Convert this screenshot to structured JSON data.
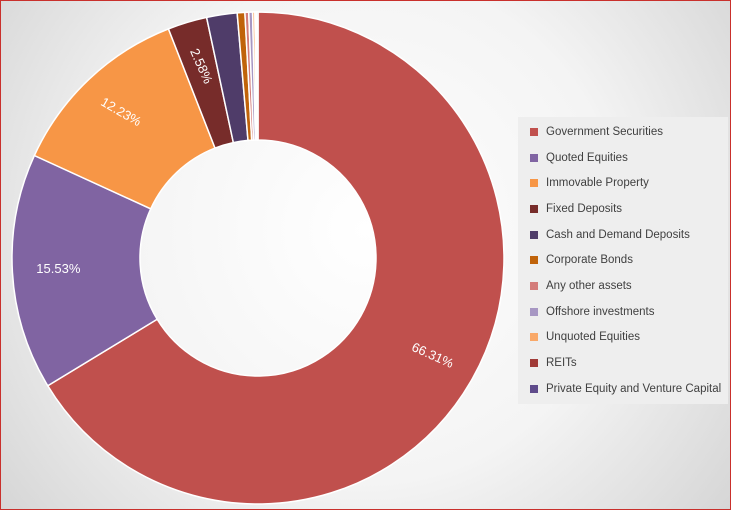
{
  "chart_data": {
    "type": "pie",
    "donut": true,
    "title": "",
    "legend_position": "right",
    "series": [
      {
        "name": "Government Securities",
        "value": 66.31,
        "label": "66.31%",
        "color": "#c0504d"
      },
      {
        "name": "Quoted Equities",
        "value": 15.53,
        "label": "15.53%",
        "color": "#8064a2"
      },
      {
        "name": "Immovable Property",
        "value": 12.23,
        "label": "12.23%",
        "color": "#f79646"
      },
      {
        "name": "Fixed Deposits",
        "value": 2.58,
        "label": "2.58%",
        "color": "#772c2a"
      },
      {
        "name": "Cash and Demand Deposits",
        "value": 2.0,
        "label": "",
        "color": "#4f3c69"
      },
      {
        "name": "Corporate Bonds",
        "value": 0.5,
        "label": "",
        "color": "#c0630a"
      },
      {
        "name": "Any other assets",
        "value": 0.25,
        "label": "",
        "color": "#d47c7a"
      },
      {
        "name": "Offshore investments",
        "value": 0.25,
        "label": "",
        "color": "#a797c3"
      },
      {
        "name": "Unquoted Equities",
        "value": 0.15,
        "label": "",
        "color": "#f9a868"
      },
      {
        "name": "REITs",
        "value": 0.1,
        "label": "",
        "color": "#a03a37"
      },
      {
        "name": "Private Equity and Venture Capital",
        "value": 0.1,
        "label": "",
        "color": "#5f4b8b"
      }
    ]
  }
}
